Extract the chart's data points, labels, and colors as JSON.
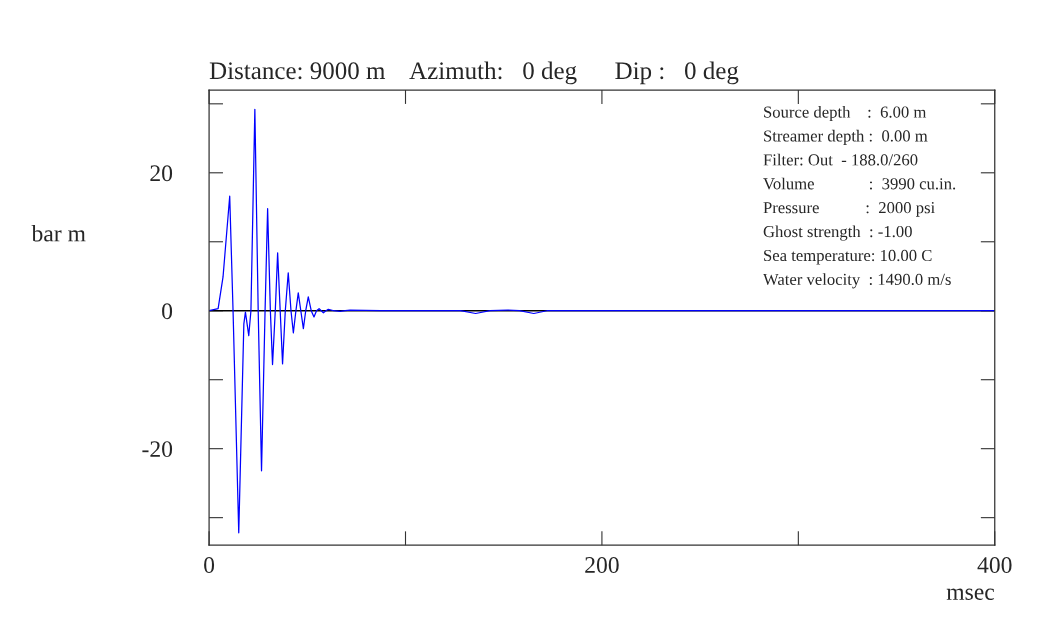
{
  "chart_data": {
    "type": "line",
    "title": "Distance: 9000 m    Azimuth:   0 deg      Dip :   0 deg",
    "xlabel": "msec",
    "ylabel": "bar m",
    "x": [
      0,
      4.6,
      7.1,
      10.5,
      12.2,
      15.1,
      17.7,
      18.5,
      20.2,
      21.3,
      23.3,
      25.0,
      26.7,
      28.5,
      29.8,
      31.2,
      32.3,
      33.7,
      34.9,
      36.2,
      37.4,
      38.8,
      40.3,
      41.7,
      42.9,
      44.2,
      45.4,
      46.7,
      48.0,
      49.2,
      50.5,
      52.0,
      53.4,
      54.7,
      56.0,
      57.1,
      58.2,
      59.5,
      60.7,
      63.5,
      66.7,
      69.3,
      71.8,
      87.1,
      128,
      135.7,
      143,
      152,
      158,
      165.3,
      172,
      200,
      300,
      400
    ],
    "series": [
      {
        "color": "#0000ff",
        "values": [
          0,
          0.3,
          4.9,
          16.6,
          0,
          -32.2,
          -1.9,
          -0.2,
          -3.6,
          0,
          29.2,
          0,
          -23.2,
          0,
          14.8,
          0,
          -7.8,
          0,
          8.4,
          0,
          -7.7,
          0,
          5.5,
          0,
          -3.2,
          0,
          2.6,
          0,
          -2.6,
          0,
          2.0,
          0,
          -0.9,
          0,
          0.3,
          0,
          -0.3,
          0,
          0.2,
          0,
          -0.1,
          0,
          0.1,
          0,
          0,
          -0.4,
          0,
          0.1,
          0,
          -0.4,
          0,
          0,
          0,
          0
        ]
      }
    ],
    "xlim": [
      0,
      400
    ],
    "ylim": [
      -34,
      32
    ],
    "xticks": [
      0,
      {
        "value": 100,
        "label": null
      },
      200,
      {
        "value": 300,
        "label": null
      },
      400
    ],
    "yticks": [
      {
        "value": -30,
        "label": null
      },
      -20,
      {
        "value": -10,
        "label": null
      },
      0,
      {
        "value": 10,
        "label": null
      },
      20,
      {
        "value": 30,
        "label": null
      }
    ],
    "ref_lines": [
      {
        "axis": "y",
        "value": 0,
        "color": "#000000"
      }
    ],
    "grid": false,
    "legend": false,
    "annotations": [
      "Source depth    :  6.00 m",
      "Streamer depth :  0.00 m",
      "Filter: Out  - 188.0/260",
      "Volume             :  3990 cu.in.",
      "Pressure           :  2000 psi",
      "Ghost strength  : -1.00",
      "Sea temperature: 10.00 C",
      "Water velocity  : 1490.0 m/s"
    ]
  }
}
